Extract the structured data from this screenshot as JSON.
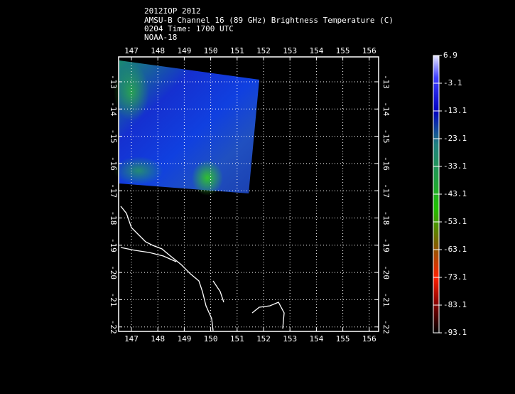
{
  "header": {
    "lines": [
      "2012IOP 2012",
      "AMSU-B Channel 16 (89 GHz) Brightness Temperature (C)",
      "0204 Time: 1700 UTC",
      "NOAA-18"
    ]
  },
  "axes": {
    "lon_ticks": [
      147,
      148,
      149,
      150,
      151,
      152,
      153,
      154,
      155,
      156
    ],
    "lat_ticks": [
      -13,
      -14,
      -15,
      -16,
      -17,
      -18,
      -19,
      -20,
      -21,
      -22
    ]
  },
  "colorbar": {
    "labels": [
      6.9,
      -3.1,
      -13.1,
      -23.1,
      -33.1,
      -43.1,
      -53.1,
      -63.1,
      -73.1,
      -83.1,
      -93.1
    ]
  }
}
